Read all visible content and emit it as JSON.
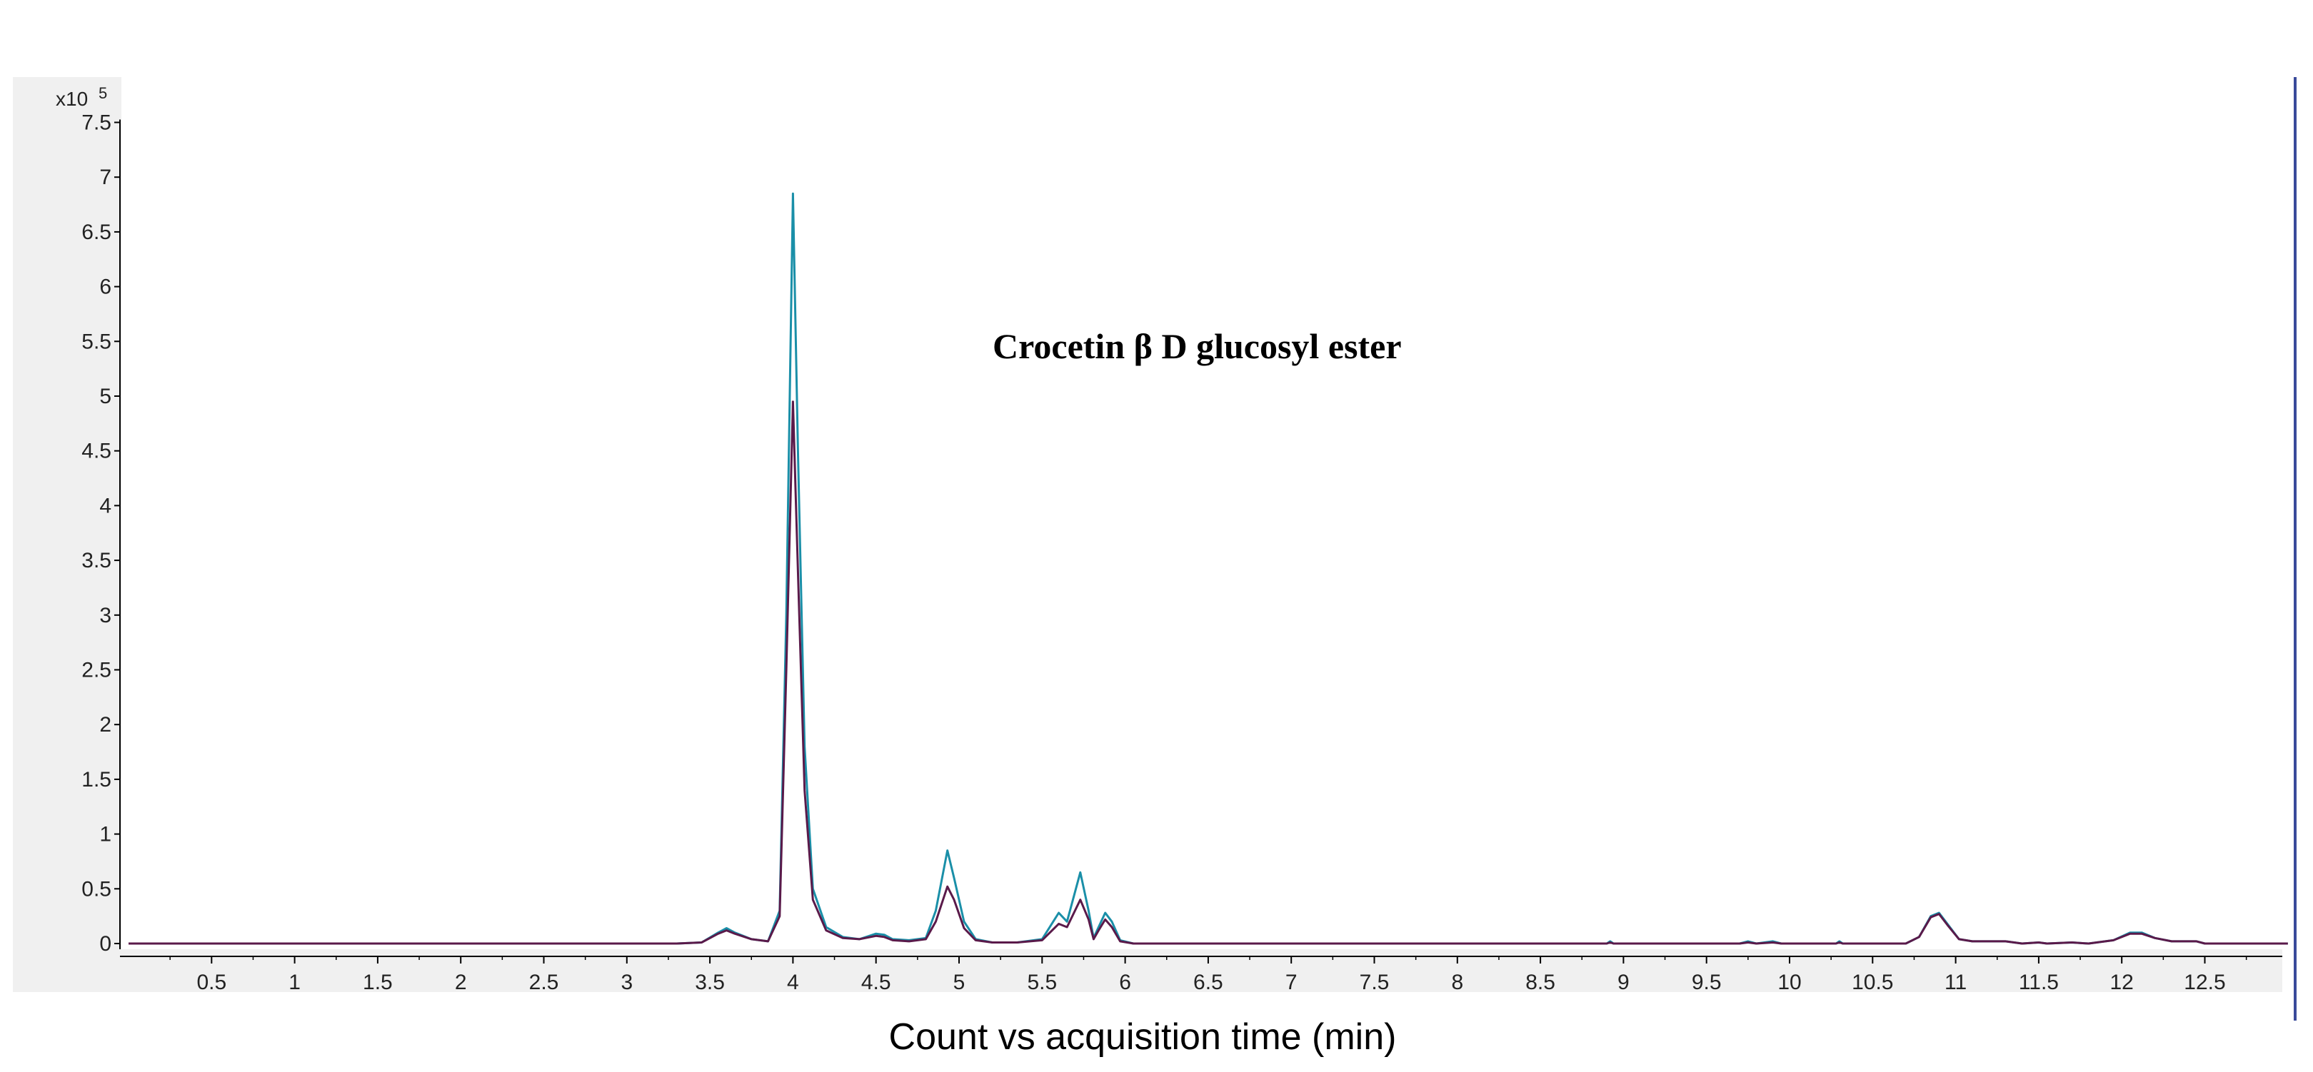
{
  "chart_data": {
    "type": "line",
    "title": "",
    "annotation": "Crocetin β D glucosyl ester",
    "xlabel": "Count vs acquisition time (min)",
    "ylabel": "",
    "y_multiplier_label": "x10",
    "y_multiplier_exponent": "5",
    "xlim": [
      0,
      13.0
    ],
    "ylim": [
      0,
      7.5
    ],
    "x_ticks": [
      "0.5",
      "1",
      "1.5",
      "2",
      "2.5",
      "3",
      "3.5",
      "4",
      "4.5",
      "5",
      "5.5",
      "6",
      "6.5",
      "7",
      "7.5",
      "8",
      "8.5",
      "9",
      "9.5",
      "10",
      "10.5",
      "11",
      "11.5",
      "12",
      "12.5"
    ],
    "y_ticks": [
      "0",
      "0.5",
      "1",
      "1.5",
      "2",
      "2.5",
      "3",
      "3.5",
      "4",
      "4.5",
      "5",
      "5.5",
      "6",
      "6.5",
      "7",
      "7.5"
    ],
    "grid": false,
    "colors": {
      "plot_background": "#ffffff",
      "outer_background": "#f0f0f0",
      "axis": "#000000"
    },
    "series": [
      {
        "color": "#1a8fa8",
        "points": [
          [
            0,
            0
          ],
          [
            3.3,
            0
          ],
          [
            3.45,
            0.01
          ],
          [
            3.55,
            0.1
          ],
          [
            3.6,
            0.14
          ],
          [
            3.65,
            0.1
          ],
          [
            3.75,
            0.04
          ],
          [
            3.85,
            0.02
          ],
          [
            3.92,
            0.3
          ],
          [
            3.96,
            3.0
          ],
          [
            4.0,
            6.85
          ],
          [
            4.03,
            4.5
          ],
          [
            4.07,
            1.8
          ],
          [
            4.12,
            0.5
          ],
          [
            4.2,
            0.15
          ],
          [
            4.3,
            0.06
          ],
          [
            4.4,
            0.04
          ],
          [
            4.5,
            0.09
          ],
          [
            4.55,
            0.08
          ],
          [
            4.6,
            0.04
          ],
          [
            4.7,
            0.03
          ],
          [
            4.8,
            0.05
          ],
          [
            4.86,
            0.3
          ],
          [
            4.93,
            0.85
          ],
          [
            4.97,
            0.6
          ],
          [
            5.03,
            0.2
          ],
          [
            5.1,
            0.04
          ],
          [
            5.2,
            0.01
          ],
          [
            5.35,
            0.01
          ],
          [
            5.5,
            0.04
          ],
          [
            5.6,
            0.28
          ],
          [
            5.65,
            0.2
          ],
          [
            5.73,
            0.65
          ],
          [
            5.78,
            0.3
          ],
          [
            5.81,
            0.05
          ],
          [
            5.84,
            0.15
          ],
          [
            5.88,
            0.28
          ],
          [
            5.92,
            0.2
          ],
          [
            5.97,
            0.03
          ],
          [
            6.05,
            0
          ],
          [
            8.9,
            0
          ],
          [
            8.92,
            0.02
          ],
          [
            8.94,
            0
          ],
          [
            9.7,
            0
          ],
          [
            9.75,
            0.02
          ],
          [
            9.8,
            0
          ],
          [
            9.9,
            0.02
          ],
          [
            9.95,
            0
          ],
          [
            10.28,
            0
          ],
          [
            10.3,
            0.02
          ],
          [
            10.32,
            0
          ],
          [
            10.7,
            0
          ],
          [
            10.78,
            0.06
          ],
          [
            10.85,
            0.25
          ],
          [
            10.9,
            0.28
          ],
          [
            10.95,
            0.18
          ],
          [
            11.02,
            0.04
          ],
          [
            11.1,
            0.02
          ],
          [
            11.3,
            0.02
          ],
          [
            11.4,
            0
          ],
          [
            11.5,
            0.01
          ],
          [
            11.55,
            0
          ],
          [
            11.7,
            0.01
          ],
          [
            11.8,
            0
          ],
          [
            11.95,
            0.03
          ],
          [
            12.05,
            0.1
          ],
          [
            12.12,
            0.1
          ],
          [
            12.2,
            0.05
          ],
          [
            12.3,
            0.02
          ],
          [
            12.45,
            0.02
          ],
          [
            12.5,
            0
          ],
          [
            13.0,
            0
          ]
        ]
      },
      {
        "color": "#5a1a4a",
        "points": [
          [
            0,
            0
          ],
          [
            3.3,
            0
          ],
          [
            3.45,
            0.01
          ],
          [
            3.55,
            0.09
          ],
          [
            3.6,
            0.12
          ],
          [
            3.65,
            0.09
          ],
          [
            3.75,
            0.04
          ],
          [
            3.85,
            0.02
          ],
          [
            3.92,
            0.25
          ],
          [
            3.96,
            2.5
          ],
          [
            4.0,
            4.95
          ],
          [
            4.03,
            3.4
          ],
          [
            4.07,
            1.4
          ],
          [
            4.12,
            0.4
          ],
          [
            4.2,
            0.12
          ],
          [
            4.3,
            0.05
          ],
          [
            4.4,
            0.04
          ],
          [
            4.5,
            0.07
          ],
          [
            4.55,
            0.06
          ],
          [
            4.6,
            0.03
          ],
          [
            4.7,
            0.02
          ],
          [
            4.8,
            0.04
          ],
          [
            4.86,
            0.2
          ],
          [
            4.93,
            0.52
          ],
          [
            4.97,
            0.4
          ],
          [
            5.03,
            0.14
          ],
          [
            5.1,
            0.03
          ],
          [
            5.2,
            0.01
          ],
          [
            5.35,
            0.01
          ],
          [
            5.5,
            0.03
          ],
          [
            5.6,
            0.18
          ],
          [
            5.65,
            0.15
          ],
          [
            5.73,
            0.4
          ],
          [
            5.78,
            0.22
          ],
          [
            5.81,
            0.04
          ],
          [
            5.84,
            0.12
          ],
          [
            5.88,
            0.22
          ],
          [
            5.92,
            0.15
          ],
          [
            5.97,
            0.02
          ],
          [
            6.05,
            0
          ],
          [
            8.9,
            0
          ],
          [
            8.92,
            0.01
          ],
          [
            8.94,
            0
          ],
          [
            9.7,
            0
          ],
          [
            9.75,
            0.01
          ],
          [
            9.8,
            0
          ],
          [
            9.9,
            0.01
          ],
          [
            9.95,
            0
          ],
          [
            10.28,
            0
          ],
          [
            10.3,
            0.01
          ],
          [
            10.32,
            0
          ],
          [
            10.7,
            0
          ],
          [
            10.78,
            0.06
          ],
          [
            10.85,
            0.24
          ],
          [
            10.9,
            0.27
          ],
          [
            10.95,
            0.17
          ],
          [
            11.02,
            0.04
          ],
          [
            11.1,
            0.02
          ],
          [
            11.3,
            0.02
          ],
          [
            11.4,
            0
          ],
          [
            11.5,
            0.01
          ],
          [
            11.55,
            0
          ],
          [
            11.7,
            0.01
          ],
          [
            11.8,
            0
          ],
          [
            11.95,
            0.03
          ],
          [
            12.05,
            0.09
          ],
          [
            12.12,
            0.09
          ],
          [
            12.2,
            0.05
          ],
          [
            12.3,
            0.02
          ],
          [
            12.45,
            0.02
          ],
          [
            12.5,
            0
          ],
          [
            13.0,
            0
          ]
        ]
      }
    ]
  }
}
